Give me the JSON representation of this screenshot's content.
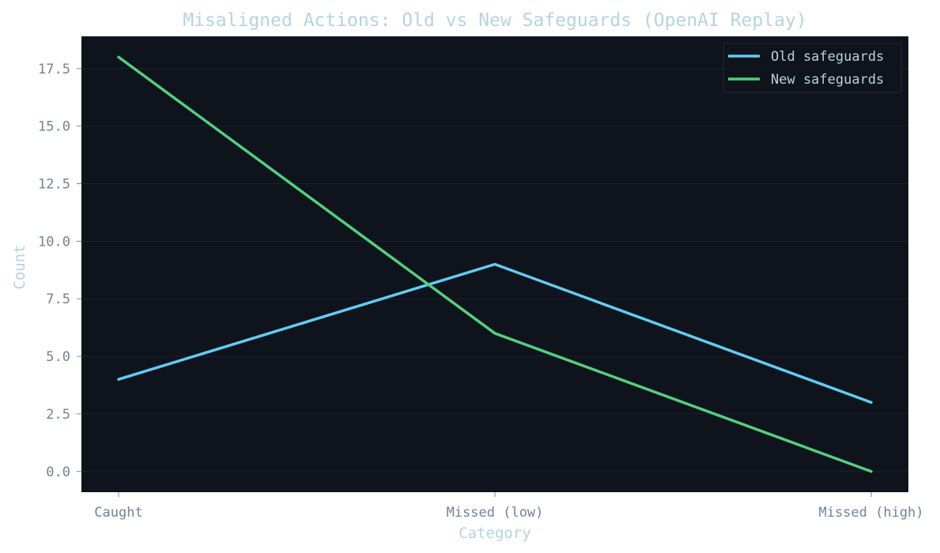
{
  "chart_data": {
    "type": "line",
    "title": "Misaligned Actions: Old vs New Safeguards (OpenAI Replay)",
    "xlabel": "Category",
    "ylabel": "Count",
    "categories": [
      "Caught",
      "Missed (low)",
      "Missed (high)"
    ],
    "y_ticks": [
      "0.0",
      "2.5",
      "5.0",
      "7.5",
      "10.0",
      "12.5",
      "15.0",
      "17.5"
    ],
    "ylim": [
      -0.9,
      18.9
    ],
    "grid": true,
    "legend_position": "top-right",
    "series": [
      {
        "name": "Old safeguards",
        "values": [
          4,
          9,
          3
        ],
        "color": "#5ccff5"
      },
      {
        "name": "New safeguards",
        "values": [
          18,
          6,
          0
        ],
        "color": "#4ed27f"
      }
    ]
  },
  "colors": {
    "plot_background": "#0f131b",
    "grid": "#1a2230",
    "title": "#b5d3e2",
    "tick_text": "#6f8597",
    "legend_text": "#b9d1de"
  }
}
